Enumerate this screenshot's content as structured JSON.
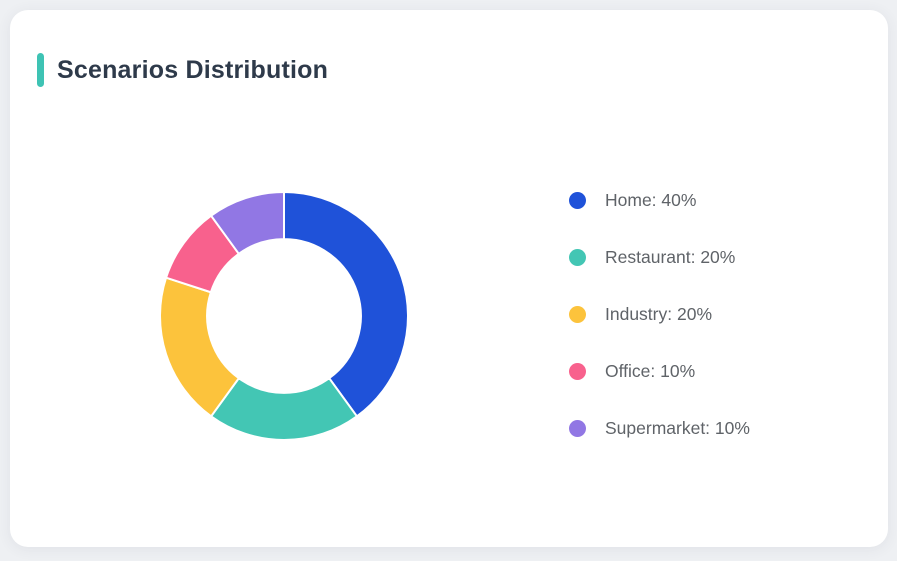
{
  "card": {
    "title": "Scenarios Distribution"
  },
  "theme": {
    "page_bg": "#eef0f3",
    "card_bg": "#ffffff",
    "accent": "#3ec3b4",
    "title_color": "#2e3a4a",
    "legend_text_color": "#5f6368",
    "slice_gap_color": "#ffffff"
  },
  "chart_data": {
    "type": "pie",
    "subtype": "donut",
    "title": "Scenarios Distribution",
    "inner_radius_ratio": 0.62,
    "start_angle_deg": 0,
    "direction": "clockwise",
    "legend_position": "right",
    "grid": false,
    "slices": [
      {
        "name": "Home",
        "value": 40,
        "label": "Home: 40%",
        "color": "#1f52d9"
      },
      {
        "name": "Restaurant",
        "value": 20,
        "label": "Restaurant: 20%",
        "color": "#43c6b4"
      },
      {
        "name": "Industry",
        "value": 20,
        "label": "Industry: 20%",
        "color": "#fcc33c"
      },
      {
        "name": "Office",
        "value": 10,
        "label": "Office: 10%",
        "color": "#f8618d"
      },
      {
        "name": "Supermarket",
        "value": 10,
        "label": "Supermarket: 10%",
        "color": "#9177e4"
      }
    ]
  }
}
